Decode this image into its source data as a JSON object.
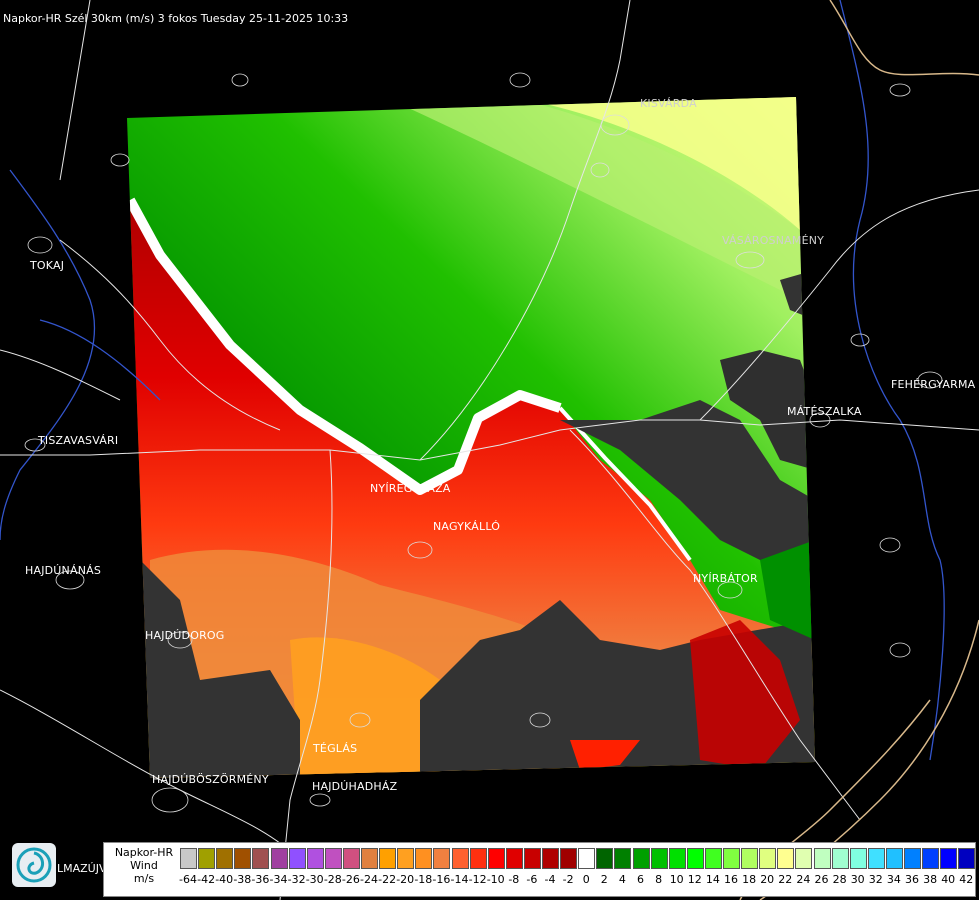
{
  "title": "Napkor-HR Szél 30km (m/s) 3 fokos Tuesday 25-11-2025 10:33",
  "cities": [
    {
      "id": "tokaj",
      "name": "TOKAJ"
    },
    {
      "id": "tiszavasvari",
      "name": "TISZAVASVÁRI"
    },
    {
      "id": "hajdunanas",
      "name": "HAJDÚNÁNÁS"
    },
    {
      "id": "hajdudorog",
      "name": "HAJDÚDOROG"
    },
    {
      "id": "hajduboszormeny",
      "name": "HAJDÚBÖSZÖRMÉNY"
    },
    {
      "id": "hajduhadhaz",
      "name": "HAJDÚHADHÁZ"
    },
    {
      "id": "teglas",
      "name": "TÉGLÁS"
    },
    {
      "id": "nyiregyhaza",
      "name": "NYÍREGYHÁZA"
    },
    {
      "id": "nagykallo",
      "name": "NAGYKÁLLÓ"
    },
    {
      "id": "nyirbator",
      "name": "NYÍRBÁTOR"
    },
    {
      "id": "mateszalka",
      "name": "MÁTÉSZALKA"
    },
    {
      "id": "fehergyarmat",
      "name": "FEHÉRGYARMA"
    },
    {
      "id": "vasarosnameny",
      "name": "VÁSÁROSNAMÉNY"
    },
    {
      "id": "kisvarda",
      "name": "KISVÁRDA"
    }
  ],
  "extra_text": "LMAZÚJVÁR",
  "legend": {
    "line1": "Napkor-HR",
    "line2": "Wind",
    "line3": "m/s",
    "values": [
      "-64",
      "-42",
      "-40",
      "-38",
      "-36",
      "-34",
      "-32",
      "-30",
      "-28",
      "-26",
      "-24",
      "-22",
      "-20",
      "-18",
      "-16",
      "-14",
      "-12",
      "-10",
      "-8",
      "-6",
      "-4",
      "-2",
      "0",
      "2",
      "4",
      "6",
      "8",
      "10",
      "12",
      "14",
      "16",
      "18",
      "20",
      "22",
      "24",
      "26",
      "28",
      "30",
      "32",
      "34",
      "36",
      "38",
      "40",
      "42"
    ],
    "colors": [
      "#c8c8c8",
      "#a0a000",
      "#a07000",
      "#a05000",
      "#a05050",
      "#a040a0",
      "#9050ff",
      "#b050e0",
      "#c050c0",
      "#d05080",
      "#e08040",
      "#ffa000",
      "#ffa020",
      "#ff9020",
      "#f08040",
      "#ff6030",
      "#ff3010",
      "#ff0000",
      "#e00000",
      "#c80000",
      "#b00000",
      "#a00000",
      "#ffffff",
      "#006400",
      "#008000",
      "#00a000",
      "#00c000",
      "#00e000",
      "#00ff00",
      "#40ff20",
      "#80ff40",
      "#b0ff60",
      "#e0ff80",
      "#ffff90",
      "#e0ffb0",
      "#c0ffc0",
      "#a0ffd0",
      "#80ffe0",
      "#40e0ff",
      "#20c0ff",
      "#0080ff",
      "#0040ff",
      "#0000ff",
      "#0000c0"
    ]
  }
}
